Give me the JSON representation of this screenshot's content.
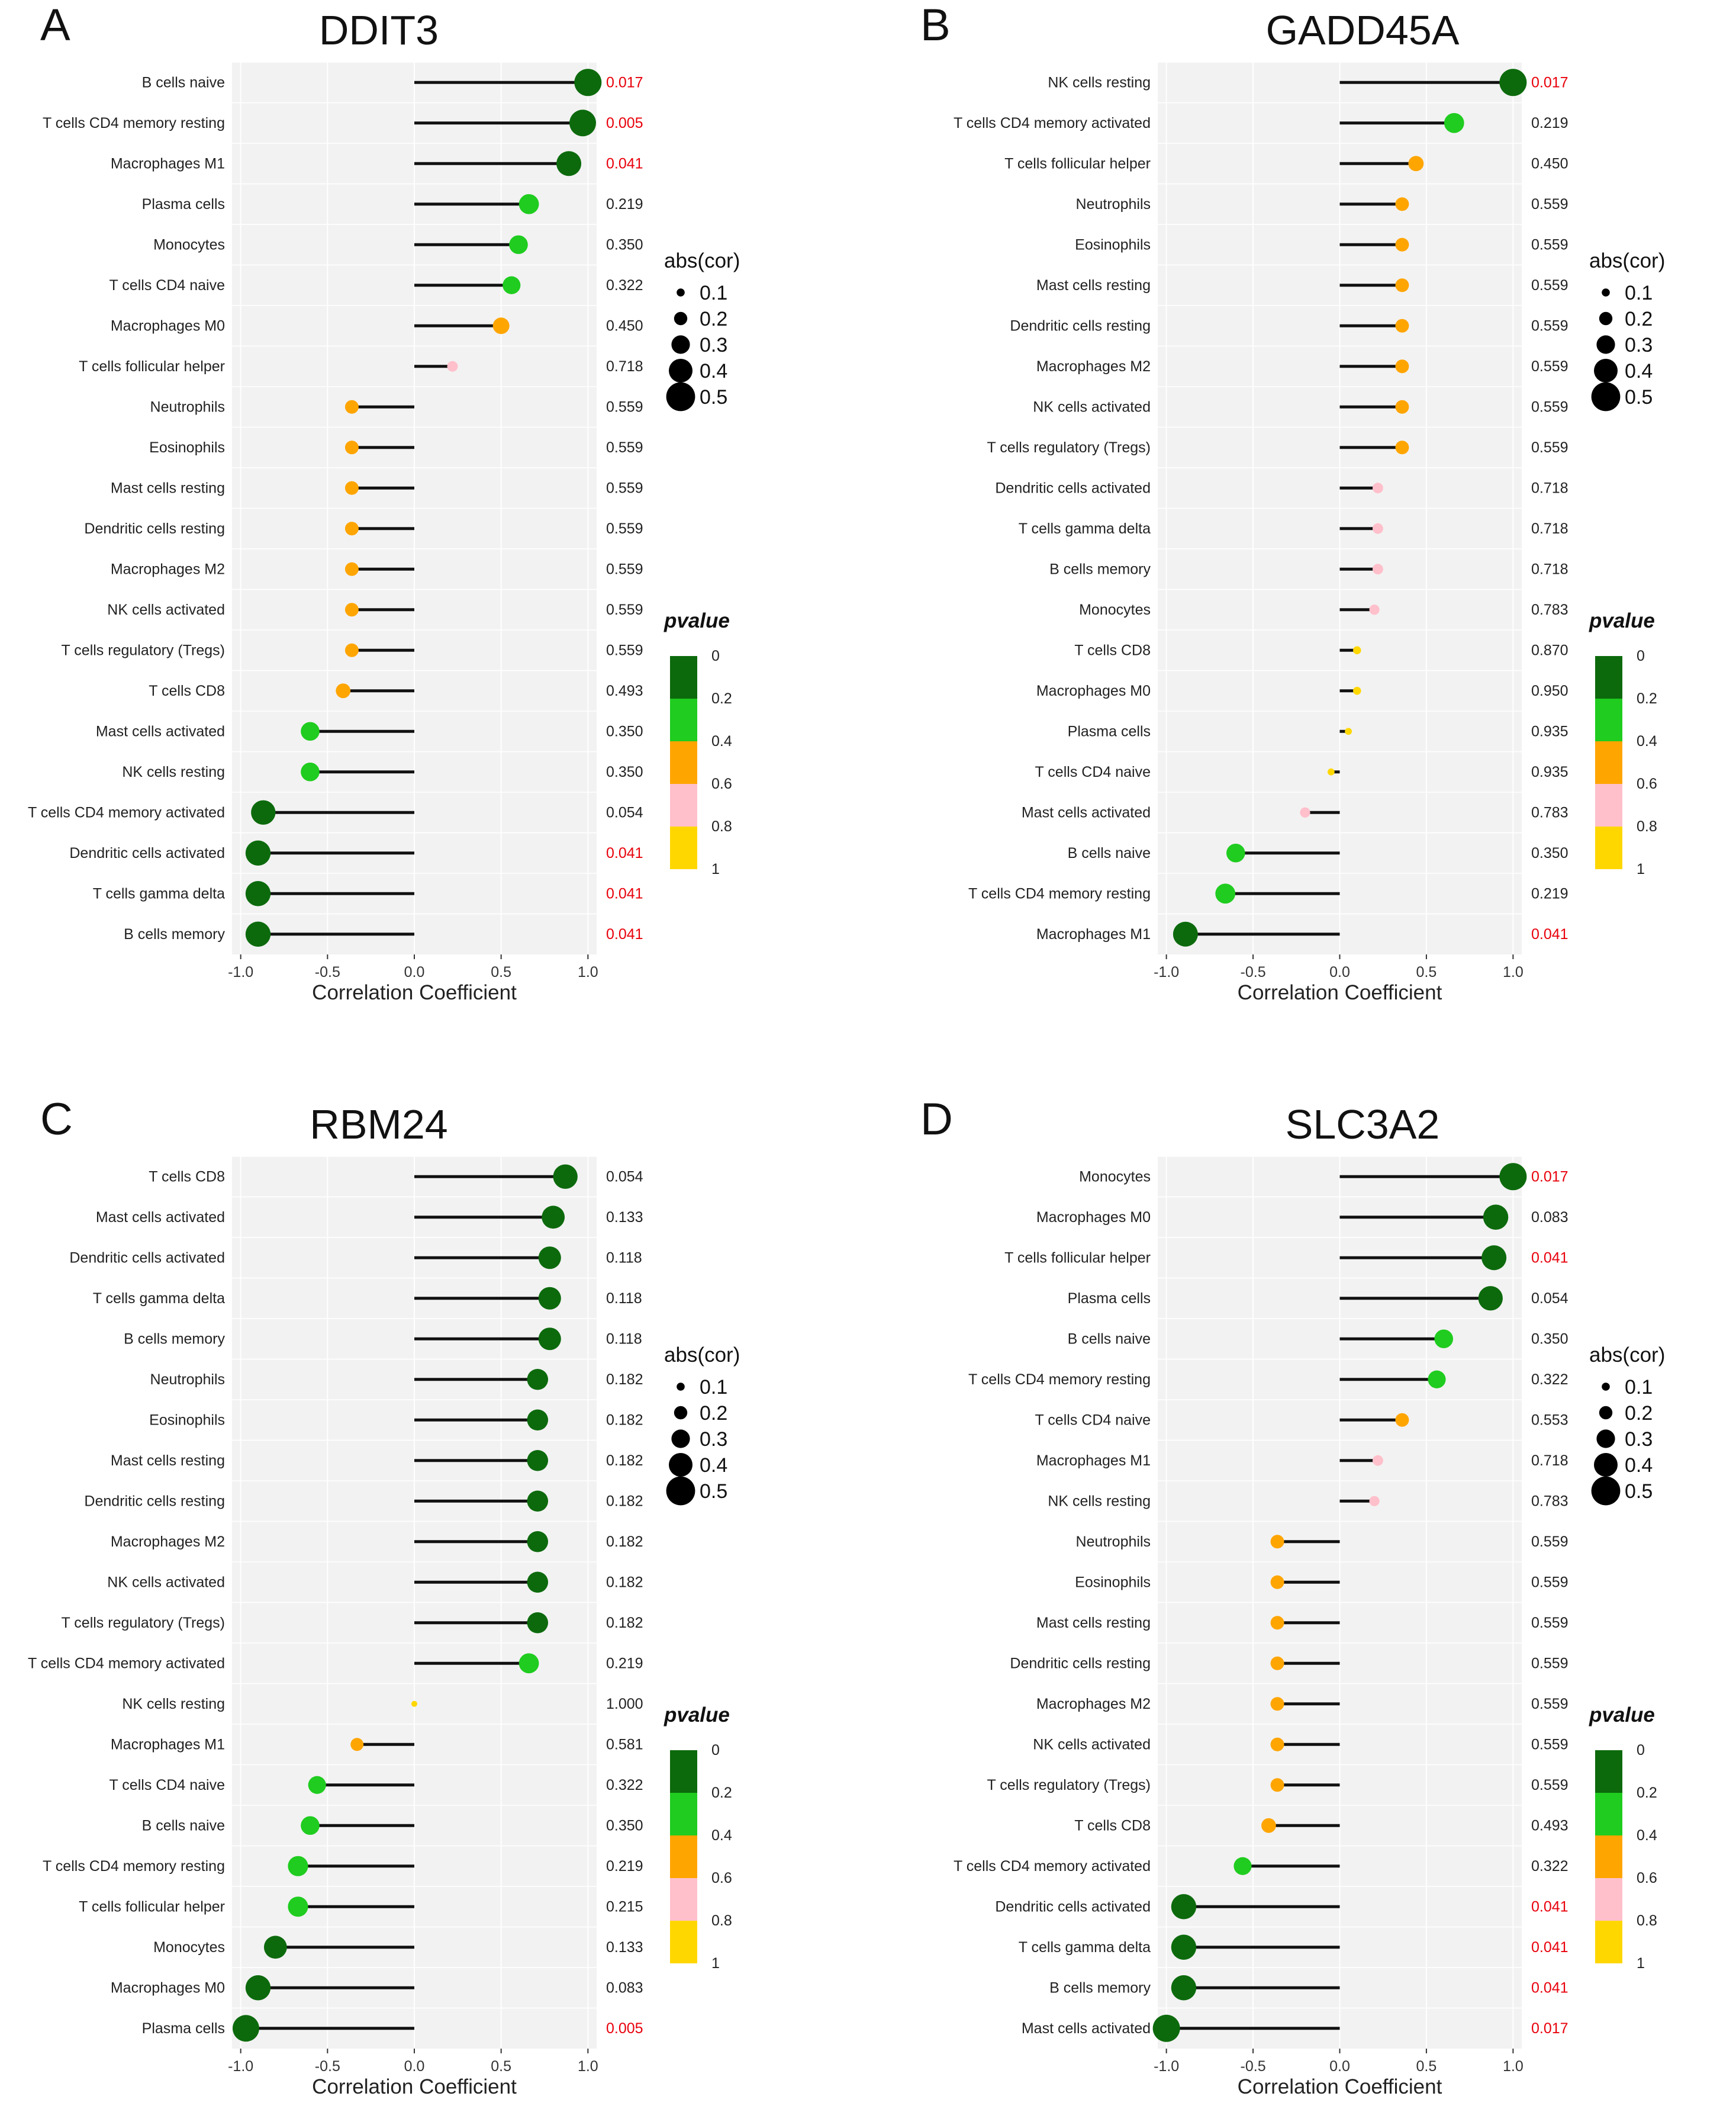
{
  "colors": {
    "p_0_0.2": "#0c6a0c",
    "p_0.2_0.4": "#1fcc1f",
    "p_0.4_0.6": "#ffa500",
    "p_0.6_0.8": "#ffc0cb",
    "p_0.8_1": "#ffd700",
    "significant_text": "#e8000b",
    "normal_text": "#222222",
    "panel_bg": "#f2f2f2"
  },
  "chart_data": [
    {
      "type": "lollipop",
      "panel": "A",
      "title": "DDIT3",
      "xlabel": "Correlation Coefficient",
      "xlim": [
        -1.05,
        1.05
      ],
      "xticks": [
        "-1.0",
        "-0.5",
        "0.0",
        "0.5",
        "1.0"
      ],
      "legend_size_title": "abs(cor)",
      "legend_size_labels": [
        "0.1",
        "0.2",
        "0.3",
        "0.4",
        "0.5"
      ],
      "legend_color_title": "pvalue",
      "legend_color_labels": [
        "0",
        "0.2",
        "0.4",
        "0.6",
        "0.8",
        "1"
      ],
      "rows": [
        {
          "label": "B cells naive",
          "cor": 1.0,
          "p": "0.017"
        },
        {
          "label": "T cells CD4 memory resting",
          "cor": 0.97,
          "p": "0.005"
        },
        {
          "label": "Macrophages M1",
          "cor": 0.89,
          "p": "0.041"
        },
        {
          "label": "Plasma cells",
          "cor": 0.66,
          "p": "0.219"
        },
        {
          "label": "Monocytes",
          "cor": 0.6,
          "p": "0.350"
        },
        {
          "label": "T cells CD4 naive",
          "cor": 0.56,
          "p": "0.322"
        },
        {
          "label": "Macrophages M0",
          "cor": 0.5,
          "p": "0.450"
        },
        {
          "label": "T cells follicular helper",
          "cor": 0.22,
          "p": "0.718"
        },
        {
          "label": "Neutrophils",
          "cor": -0.36,
          "p": "0.559"
        },
        {
          "label": "Eosinophils",
          "cor": -0.36,
          "p": "0.559"
        },
        {
          "label": "Mast cells resting",
          "cor": -0.36,
          "p": "0.559"
        },
        {
          "label": "Dendritic cells resting",
          "cor": -0.36,
          "p": "0.559"
        },
        {
          "label": "Macrophages M2",
          "cor": -0.36,
          "p": "0.559"
        },
        {
          "label": "NK cells activated",
          "cor": -0.36,
          "p": "0.559"
        },
        {
          "label": "T cells regulatory (Tregs)",
          "cor": -0.36,
          "p": "0.559"
        },
        {
          "label": "T cells CD8",
          "cor": -0.41,
          "p": "0.493"
        },
        {
          "label": "Mast cells activated",
          "cor": -0.6,
          "p": "0.350"
        },
        {
          "label": "NK cells resting",
          "cor": -0.6,
          "p": "0.350"
        },
        {
          "label": "T cells CD4 memory activated",
          "cor": -0.87,
          "p": "0.054"
        },
        {
          "label": "Dendritic cells activated",
          "cor": -0.9,
          "p": "0.041"
        },
        {
          "label": "T cells gamma delta",
          "cor": -0.9,
          "p": "0.041"
        },
        {
          "label": "B cells memory",
          "cor": -0.9,
          "p": "0.041"
        }
      ]
    },
    {
      "type": "lollipop",
      "panel": "B",
      "title": "GADD45A",
      "xlabel": "Correlation Coefficient",
      "xlim": [
        -1.05,
        1.05
      ],
      "xticks": [
        "-1.0",
        "-0.5",
        "0.0",
        "0.5",
        "1.0"
      ],
      "legend_size_title": "abs(cor)",
      "legend_size_labels": [
        "0.1",
        "0.2",
        "0.3",
        "0.4",
        "0.5"
      ],
      "legend_color_title": "pvalue",
      "legend_color_labels": [
        "0",
        "0.2",
        "0.4",
        "0.6",
        "0.8",
        "1"
      ],
      "rows": [
        {
          "label": "NK cells resting",
          "cor": 1.0,
          "p": "0.017"
        },
        {
          "label": "T cells CD4 memory activated",
          "cor": 0.66,
          "p": "0.219"
        },
        {
          "label": "T cells follicular helper",
          "cor": 0.44,
          "p": "0.450"
        },
        {
          "label": "Neutrophils",
          "cor": 0.36,
          "p": "0.559"
        },
        {
          "label": "Eosinophils",
          "cor": 0.36,
          "p": "0.559"
        },
        {
          "label": "Mast cells resting",
          "cor": 0.36,
          "p": "0.559"
        },
        {
          "label": "Dendritic cells resting",
          "cor": 0.36,
          "p": "0.559"
        },
        {
          "label": "Macrophages M2",
          "cor": 0.36,
          "p": "0.559"
        },
        {
          "label": "NK cells activated",
          "cor": 0.36,
          "p": "0.559"
        },
        {
          "label": "T cells regulatory (Tregs)",
          "cor": 0.36,
          "p": "0.559"
        },
        {
          "label": "Dendritic cells activated",
          "cor": 0.22,
          "p": "0.718"
        },
        {
          "label": "T cells gamma delta",
          "cor": 0.22,
          "p": "0.718"
        },
        {
          "label": "B cells memory",
          "cor": 0.22,
          "p": "0.718"
        },
        {
          "label": "Monocytes",
          "cor": 0.2,
          "p": "0.783"
        },
        {
          "label": "T cells CD8",
          "cor": 0.1,
          "p": "0.870"
        },
        {
          "label": "Macrophages M0",
          "cor": 0.1,
          "p": "0.950"
        },
        {
          "label": "Plasma cells",
          "cor": 0.05,
          "p": "0.935"
        },
        {
          "label": "T cells CD4 naive",
          "cor": -0.05,
          "p": "0.935"
        },
        {
          "label": "Mast cells activated",
          "cor": -0.2,
          "p": "0.783"
        },
        {
          "label": "B cells naive",
          "cor": -0.6,
          "p": "0.350"
        },
        {
          "label": "T cells CD4 memory resting",
          "cor": -0.66,
          "p": "0.219"
        },
        {
          "label": "Macrophages M1",
          "cor": -0.89,
          "p": "0.041"
        }
      ]
    },
    {
      "type": "lollipop",
      "panel": "C",
      "title": "RBM24",
      "xlabel": "Correlation Coefficient",
      "xlim": [
        -1.05,
        1.05
      ],
      "xticks": [
        "-1.0",
        "-0.5",
        "0.0",
        "0.5",
        "1.0"
      ],
      "legend_size_title": "abs(cor)",
      "legend_size_labels": [
        "0.1",
        "0.2",
        "0.3",
        "0.4",
        "0.5"
      ],
      "legend_color_title": "pvalue",
      "legend_color_labels": [
        "0",
        "0.2",
        "0.4",
        "0.6",
        "0.8",
        "1"
      ],
      "rows": [
        {
          "label": "T cells CD8",
          "cor": 0.87,
          "p": "0.054"
        },
        {
          "label": "Mast cells activated",
          "cor": 0.8,
          "p": "0.133"
        },
        {
          "label": "Dendritic cells activated",
          "cor": 0.78,
          "p": "0.118"
        },
        {
          "label": "T cells gamma delta",
          "cor": 0.78,
          "p": "0.118"
        },
        {
          "label": "B cells memory",
          "cor": 0.78,
          "p": "0.118"
        },
        {
          "label": "Neutrophils",
          "cor": 0.71,
          "p": "0.182"
        },
        {
          "label": "Eosinophils",
          "cor": 0.71,
          "p": "0.182"
        },
        {
          "label": "Mast cells resting",
          "cor": 0.71,
          "p": "0.182"
        },
        {
          "label": "Dendritic cells resting",
          "cor": 0.71,
          "p": "0.182"
        },
        {
          "label": "Macrophages M2",
          "cor": 0.71,
          "p": "0.182"
        },
        {
          "label": "NK cells activated",
          "cor": 0.71,
          "p": "0.182"
        },
        {
          "label": "T cells regulatory (Tregs)",
          "cor": 0.71,
          "p": "0.182"
        },
        {
          "label": "T cells CD4 memory activated",
          "cor": 0.66,
          "p": "0.219"
        },
        {
          "label": "NK cells resting",
          "cor": 0.0,
          "p": "1.000"
        },
        {
          "label": "Macrophages M1",
          "cor": -0.33,
          "p": "0.581"
        },
        {
          "label": "T cells CD4 naive",
          "cor": -0.56,
          "p": "0.322"
        },
        {
          "label": "B cells naive",
          "cor": -0.6,
          "p": "0.350"
        },
        {
          "label": "T cells CD4 memory resting",
          "cor": -0.67,
          "p": "0.219"
        },
        {
          "label": "T cells follicular helper",
          "cor": -0.67,
          "p": "0.215"
        },
        {
          "label": "Monocytes",
          "cor": -0.8,
          "p": "0.133"
        },
        {
          "label": "Macrophages M0",
          "cor": -0.9,
          "p": "0.083"
        },
        {
          "label": "Plasma cells",
          "cor": -0.97,
          "p": "0.005"
        }
      ]
    },
    {
      "type": "lollipop",
      "panel": "D",
      "title": "SLC3A2",
      "xlabel": "Correlation Coefficient",
      "xlim": [
        -1.05,
        1.05
      ],
      "xticks": [
        "-1.0",
        "-0.5",
        "0.0",
        "0.5",
        "1.0"
      ],
      "legend_size_title": "abs(cor)",
      "legend_size_labels": [
        "0.1",
        "0.2",
        "0.3",
        "0.4",
        "0.5"
      ],
      "legend_color_title": "pvalue",
      "legend_color_labels": [
        "0",
        "0.2",
        "0.4",
        "0.6",
        "0.8",
        "1"
      ],
      "rows": [
        {
          "label": "Monocytes",
          "cor": 1.0,
          "p": "0.017"
        },
        {
          "label": "Macrophages M0",
          "cor": 0.9,
          "p": "0.083"
        },
        {
          "label": "T cells follicular helper",
          "cor": 0.89,
          "p": "0.041"
        },
        {
          "label": "Plasma cells",
          "cor": 0.87,
          "p": "0.054"
        },
        {
          "label": "B cells naive",
          "cor": 0.6,
          "p": "0.350"
        },
        {
          "label": "T cells CD4 memory resting",
          "cor": 0.56,
          "p": "0.322"
        },
        {
          "label": "T cells CD4 naive",
          "cor": 0.36,
          "p": "0.553"
        },
        {
          "label": "Macrophages M1",
          "cor": 0.22,
          "p": "0.718"
        },
        {
          "label": "NK cells resting",
          "cor": 0.2,
          "p": "0.783"
        },
        {
          "label": "Neutrophils",
          "cor": -0.36,
          "p": "0.559"
        },
        {
          "label": "Eosinophils",
          "cor": -0.36,
          "p": "0.559"
        },
        {
          "label": "Mast cells resting",
          "cor": -0.36,
          "p": "0.559"
        },
        {
          "label": "Dendritic cells resting",
          "cor": -0.36,
          "p": "0.559"
        },
        {
          "label": "Macrophages M2",
          "cor": -0.36,
          "p": "0.559"
        },
        {
          "label": "NK cells activated",
          "cor": -0.36,
          "p": "0.559"
        },
        {
          "label": "T cells regulatory (Tregs)",
          "cor": -0.36,
          "p": "0.559"
        },
        {
          "label": "T cells CD8",
          "cor": -0.41,
          "p": "0.493"
        },
        {
          "label": "T cells CD4 memory activated",
          "cor": -0.56,
          "p": "0.322"
        },
        {
          "label": "Dendritic cells activated",
          "cor": -0.9,
          "p": "0.041"
        },
        {
          "label": "T cells gamma delta",
          "cor": -0.9,
          "p": "0.041"
        },
        {
          "label": "B cells memory",
          "cor": -0.9,
          "p": "0.041"
        },
        {
          "label": "Mast cells activated",
          "cor": -1.0,
          "p": "0.017"
        }
      ]
    }
  ]
}
